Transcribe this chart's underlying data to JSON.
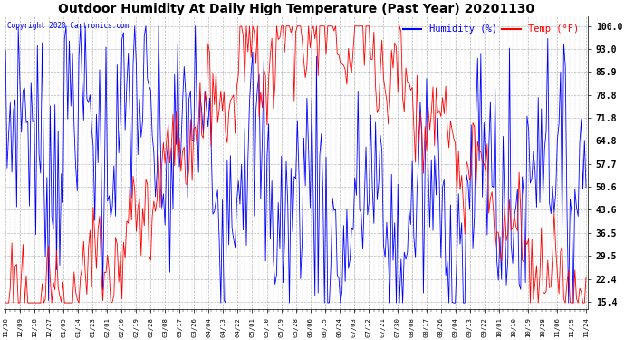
{
  "title": "Outdoor Humidity At Daily High Temperature (Past Year) 20201130",
  "copyright": "Copyright 2020 Cartronics.com",
  "legend_humidity": "Humidity (%)",
  "legend_temp": "Temp (°F)",
  "humidity_color": "blue",
  "temp_color": "red",
  "yticks": [
    15.4,
    22.4,
    29.5,
    36.5,
    43.6,
    50.6,
    57.7,
    64.8,
    71.8,
    78.8,
    85.9,
    93.0,
    100.0
  ],
  "ylim": [
    13,
    103
  ],
  "background_color": "#ffffff",
  "grid_color": "#aaaaaa",
  "title_fontsize": 10,
  "n_days": 365,
  "xtick_labels": [
    "11/30",
    "12/09",
    "12/18",
    "12/27",
    "01/05",
    "01/14",
    "01/23",
    "02/01",
    "02/10",
    "02/19",
    "02/28",
    "03/08",
    "03/17",
    "03/26",
    "04/04",
    "04/13",
    "04/22",
    "05/01",
    "05/10",
    "05/19",
    "05/28",
    "06/06",
    "06/15",
    "06/24",
    "07/03",
    "07/12",
    "07/21",
    "07/30",
    "08/08",
    "08/17",
    "08/26",
    "09/04",
    "09/13",
    "09/22",
    "10/01",
    "10/10",
    "10/19",
    "10/28",
    "11/06",
    "11/15",
    "11/24"
  ]
}
